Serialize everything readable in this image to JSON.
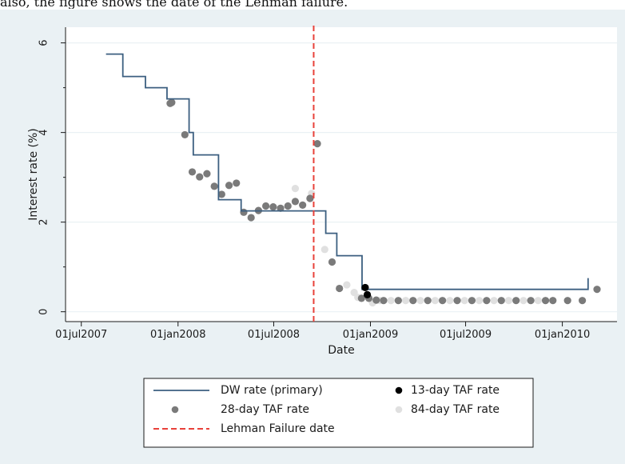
{
  "caption": "also, the figure shows the date of the Lehman failure.",
  "chart_data": {
    "type": "line",
    "xlabel": "Date",
    "ylabel": "Interest rate (%)",
    "x_ticks": [
      "01jul2007",
      "01jan2008",
      "01jul2008",
      "01jan2009",
      "01jul2009",
      "01jan2010"
    ],
    "y_ticks": [
      "0",
      "2",
      "4",
      "6"
    ],
    "xlim": [
      "2007-06-01",
      "2010-04-15"
    ],
    "ylim": [
      -0.22,
      6.35
    ],
    "grid": "horizontal",
    "legend_position": "bottom",
    "lehman_date": "2008-09-15",
    "series": [
      {
        "name": "DW rate (primary)",
        "style": "step",
        "color": "#3c5f80",
        "points": [
          [
            "2007-08-17",
            5.75
          ],
          [
            "2007-09-18",
            5.25
          ],
          [
            "2007-10-31",
            5.0
          ],
          [
            "2007-12-11",
            4.75
          ],
          [
            "2008-01-22",
            4.0
          ],
          [
            "2008-01-30",
            3.5
          ],
          [
            "2008-03-18",
            2.5
          ],
          [
            "2008-04-30",
            2.25
          ],
          [
            "2008-10-08",
            1.75
          ],
          [
            "2008-10-29",
            1.25
          ],
          [
            "2008-12-16",
            0.5
          ],
          [
            "2010-02-19",
            0.75
          ]
        ]
      },
      {
        "name": "28-day TAF rate",
        "style": "markers",
        "color": "#7a7a7a",
        "points": [
          [
            "2007-12-17",
            4.65
          ],
          [
            "2007-12-20",
            4.67
          ],
          [
            "2008-01-14",
            3.95
          ],
          [
            "2008-01-28",
            3.12
          ],
          [
            "2008-02-11",
            3.01
          ],
          [
            "2008-02-25",
            3.08
          ],
          [
            "2008-03-10",
            2.8
          ],
          [
            "2008-03-24",
            2.62
          ],
          [
            "2008-04-07",
            2.82
          ],
          [
            "2008-04-21",
            2.87
          ],
          [
            "2008-05-05",
            2.22
          ],
          [
            "2008-05-19",
            2.1
          ],
          [
            "2008-06-02",
            2.26
          ],
          [
            "2008-06-16",
            2.36
          ],
          [
            "2008-06-30",
            2.34
          ],
          [
            "2008-07-14",
            2.31
          ],
          [
            "2008-07-28",
            2.36
          ],
          [
            "2008-08-11",
            2.46
          ],
          [
            "2008-08-25",
            2.38
          ],
          [
            "2008-09-08",
            2.53
          ],
          [
            "2008-09-22",
            3.75
          ],
          [
            "2008-10-20",
            1.11
          ],
          [
            "2008-11-03",
            0.52
          ],
          [
            "2008-12-15",
            0.3
          ],
          [
            "2008-12-29",
            0.3
          ],
          [
            "2009-01-12",
            0.26
          ],
          [
            "2009-01-26",
            0.25
          ],
          [
            "2009-02-23",
            0.25
          ],
          [
            "2009-03-23",
            0.25
          ],
          [
            "2009-04-20",
            0.25
          ],
          [
            "2009-05-18",
            0.25
          ],
          [
            "2009-06-15",
            0.25
          ],
          [
            "2009-07-13",
            0.25
          ],
          [
            "2009-08-10",
            0.25
          ],
          [
            "2009-09-07",
            0.25
          ],
          [
            "2009-10-05",
            0.25
          ],
          [
            "2009-11-02",
            0.25
          ],
          [
            "2009-11-30",
            0.25
          ],
          [
            "2009-12-14",
            0.25
          ],
          [
            "2010-01-11",
            0.25
          ],
          [
            "2010-02-08",
            0.25
          ],
          [
            "2010-03-08",
            0.5
          ]
        ]
      },
      {
        "name": "13-day TAF rate",
        "style": "markers",
        "color": "#000000",
        "points": [
          [
            "2008-12-22",
            0.54
          ],
          [
            "2008-12-26",
            0.38
          ]
        ]
      },
      {
        "name": "84-day TAF rate",
        "style": "markers",
        "color": "#e0e0e0",
        "points": [
          [
            "2008-08-11",
            2.75
          ],
          [
            "2008-09-11",
            2.64
          ],
          [
            "2008-10-06",
            1.39
          ],
          [
            "2008-11-17",
            0.6
          ],
          [
            "2008-12-01",
            0.43
          ],
          [
            "2008-12-08",
            0.32
          ],
          [
            "2009-01-05",
            0.2
          ],
          [
            "2009-01-19",
            0.25
          ],
          [
            "2009-02-09",
            0.25
          ],
          [
            "2009-03-09",
            0.25
          ],
          [
            "2009-04-06",
            0.25
          ],
          [
            "2009-05-04",
            0.25
          ],
          [
            "2009-06-01",
            0.25
          ],
          [
            "2009-06-29",
            0.25
          ],
          [
            "2009-07-27",
            0.25
          ],
          [
            "2009-08-24",
            0.25
          ],
          [
            "2009-09-21",
            0.25
          ],
          [
            "2009-10-19",
            0.25
          ],
          [
            "2009-11-16",
            0.25
          ]
        ]
      },
      {
        "name": "Lehman Failure date",
        "style": "dashed-vertical",
        "color": "#e8413a"
      }
    ]
  }
}
